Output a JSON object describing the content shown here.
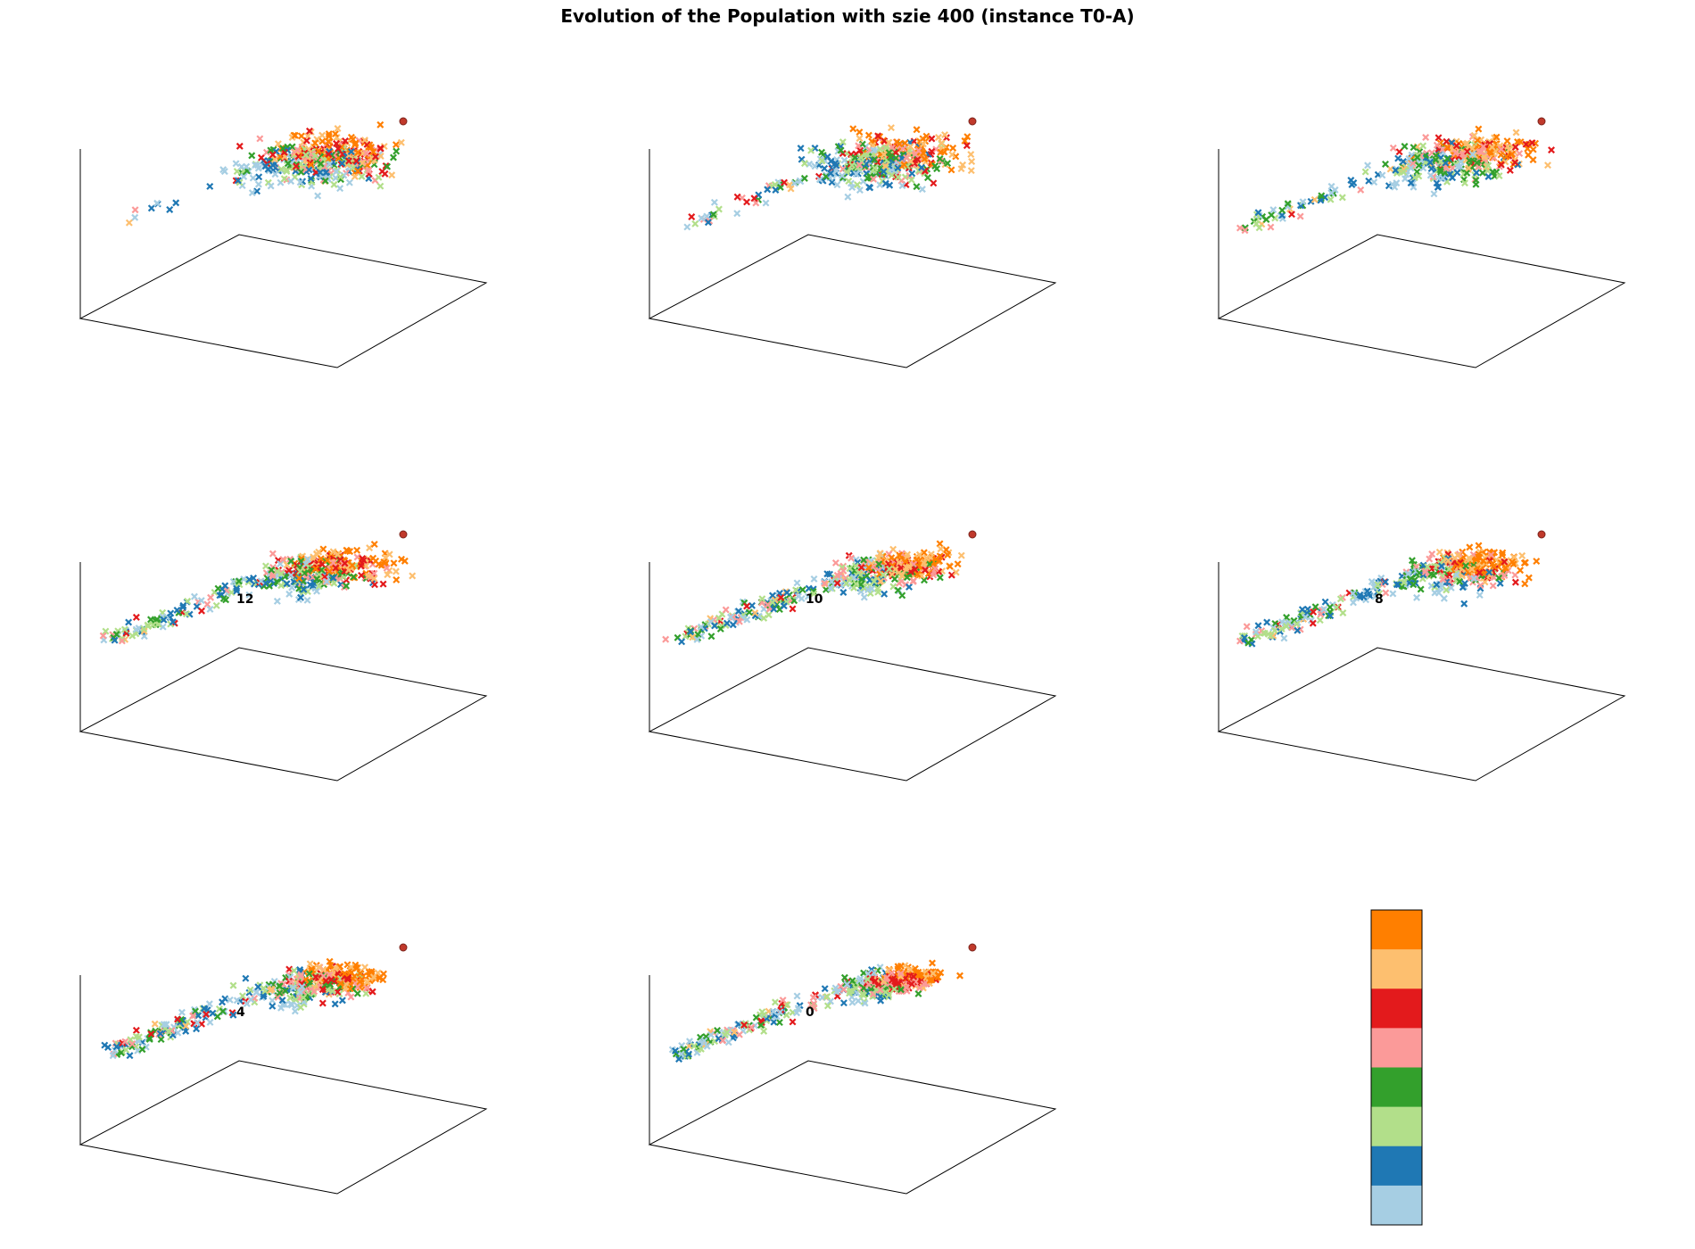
{
  "title": "Evolution of the Population with szie 400 (instance T0-A)",
  "chart_data": {
    "type": "scatter",
    "projection": "3d",
    "marker": "x",
    "grid": false,
    "tick_labels": false,
    "colormap": [
      "#a6cee3",
      "#1f78b4",
      "#b2df8a",
      "#33a02c",
      "#fb9a99",
      "#e31a1c",
      "#fdbf6f",
      "#ff7f00"
    ],
    "best_marker_color": "#c0392b",
    "panels": [
      {
        "label": "",
        "spread": 1.0,
        "elongation": 0.15
      },
      {
        "label": "",
        "spread": 1.0,
        "elongation": 0.3
      },
      {
        "label": "",
        "spread": 0.9,
        "elongation": 0.45
      },
      {
        "label": "12",
        "spread": 0.85,
        "elongation": 0.7
      },
      {
        "label": "10",
        "spread": 0.75,
        "elongation": 0.8
      },
      {
        "label": "8",
        "spread": 0.75,
        "elongation": 0.8
      },
      {
        "label": "4",
        "spread": 0.8,
        "elongation": 0.85
      },
      {
        "label": "0",
        "spread": 0.5,
        "elongation": 1.0
      }
    ],
    "colorbar": {
      "orientation": "vertical",
      "levels": 8,
      "tick_labels": false
    }
  }
}
